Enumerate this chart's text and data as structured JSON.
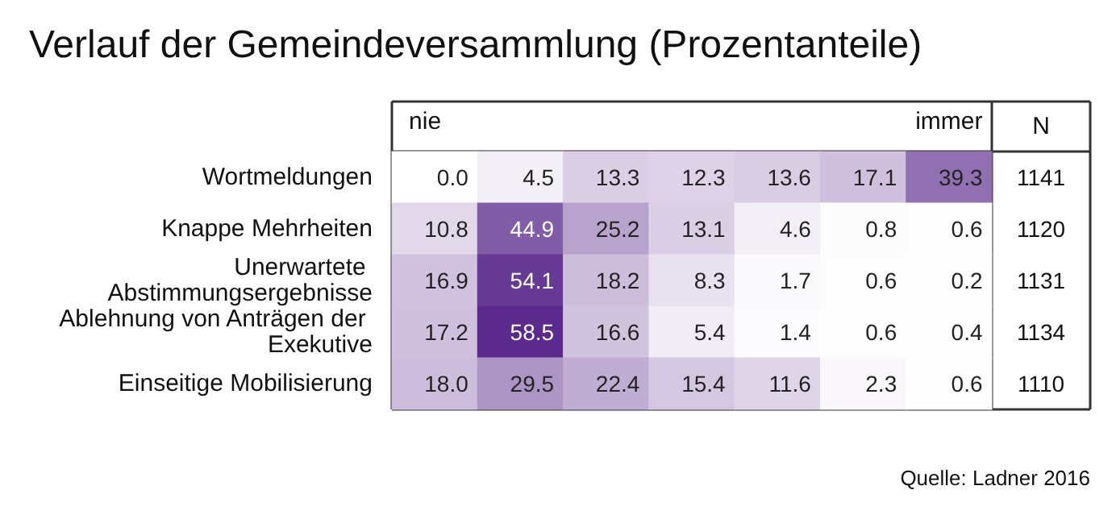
{
  "chart_data": {
    "type": "heatmap",
    "title": "Verlauf der Gemeindeversammlung (Prozentanteile)",
    "categories": [
      "nie",
      null,
      null,
      null,
      null,
      null,
      "immer"
    ],
    "y_categories": [
      "Wortmeldungen",
      "Knappe Mehrheiten",
      "Unerwartete Abstimmungsergebnisse",
      "Ablehnung von Anträgen der Exekutive",
      "Einseitige Mobilisierung"
    ],
    "y2label": "N",
    "y2_categories": [
      "1141",
      "1120",
      "1131",
      "1134",
      "1110"
    ],
    "cells": [
      [
        0.0,
        4.5,
        13.3,
        12.3,
        13.6,
        17.1,
        39.3
      ],
      [
        10.8,
        44.9,
        25.2,
        13.1,
        4.6,
        0.8,
        0.6
      ],
      [
        16.9,
        54.1,
        18.2,
        8.3,
        1.7,
        0.6,
        0.2
      ],
      [
        17.2,
        58.5,
        16.6,
        5.4,
        1.4,
        0.6,
        0.4
      ],
      [
        18.0,
        29.5,
        22.4,
        15.4,
        11.6,
        2.3,
        0.6
      ]
    ],
    "cell_labels": [
      [
        "0.0",
        "4.5",
        "13.3",
        "12.3",
        "13.6",
        "17.1",
        "39.3"
      ],
      [
        "10.8",
        "44.9",
        "25.2",
        "13.1",
        "4.6",
        "0.8",
        "0.6"
      ],
      [
        "16.9",
        "54.1",
        "18.2",
        "8.3",
        "1.7",
        "0.6",
        "0.2"
      ],
      [
        "17.2",
        "58.5",
        "16.6",
        "5.4",
        "1.4",
        "0.6",
        "0.4"
      ],
      [
        "18.0",
        "29.5",
        "22.4",
        "15.4",
        "11.6",
        "2.3",
        "0.6"
      ]
    ],
    "annotations": [
      "Quelle: Ladner 2016"
    ]
  }
}
